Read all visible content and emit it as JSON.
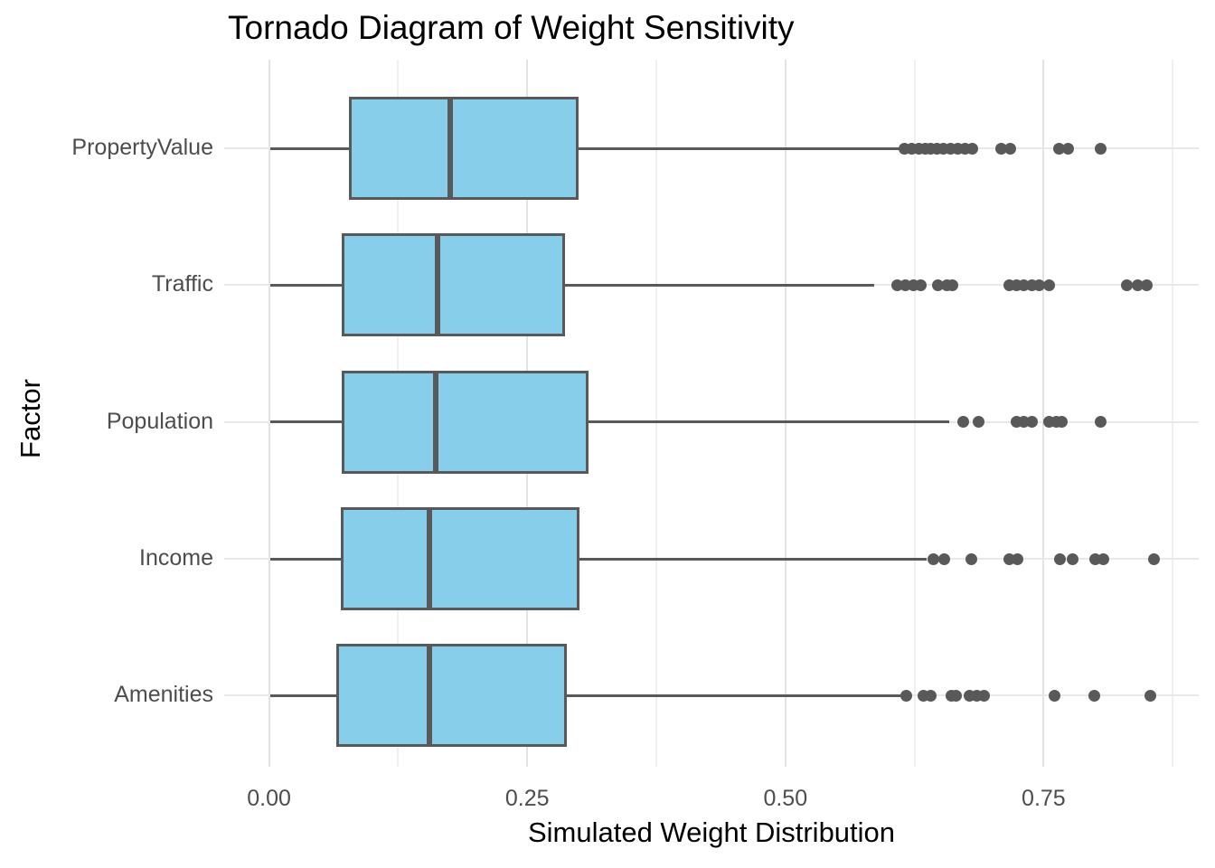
{
  "title": "Tornado Diagram of Weight Sensitivity",
  "chart_data": {
    "type": "boxplot",
    "orientation": "horizontal",
    "title": "Tornado Diagram of Weight Sensitivity",
    "xlabel": "Simulated Weight Distribution",
    "ylabel": "Factor",
    "xlim": [
      -0.043,
      0.9
    ],
    "x_ticks": [
      {
        "value": 0.0,
        "label": "0.00"
      },
      {
        "value": 0.25,
        "label": "0.25"
      },
      {
        "value": 0.5,
        "label": "0.50"
      },
      {
        "value": 0.75,
        "label": "0.75"
      }
    ],
    "x_minor_gridlines": [
      0.125,
      0.375,
      0.625,
      0.875
    ],
    "grid": true,
    "legend": false,
    "categories_top_to_bottom": [
      "PropertyValue",
      "Traffic",
      "Population",
      "Income",
      "Amenities"
    ],
    "series": [
      {
        "label": "PropertyValue",
        "whisker_low": 0.001,
        "q1": 0.079,
        "median": 0.175,
        "q3": 0.298,
        "whisker_high": 0.612,
        "outliers": [
          0.615,
          0.622,
          0.629,
          0.635,
          0.641,
          0.647,
          0.653,
          0.66,
          0.667,
          0.674,
          0.681,
          0.709,
          0.718,
          0.765,
          0.774,
          0.805
        ]
      },
      {
        "label": "Traffic",
        "whisker_low": 0.001,
        "q1": 0.072,
        "median": 0.163,
        "q3": 0.285,
        "whisker_high": 0.586,
        "outliers": [
          0.608,
          0.616,
          0.624,
          0.631,
          0.648,
          0.656,
          0.662,
          0.717,
          0.724,
          0.731,
          0.739,
          0.746,
          0.755,
          0.831,
          0.841,
          0.85
        ]
      },
      {
        "label": "Population",
        "whisker_low": 0.001,
        "q1": 0.072,
        "median": 0.161,
        "q3": 0.308,
        "whisker_high": 0.659,
        "outliers": [
          0.672,
          0.687,
          0.724,
          0.731,
          0.739,
          0.755,
          0.762,
          0.768,
          0.805
        ]
      },
      {
        "label": "Income",
        "whisker_low": 0.001,
        "q1": 0.071,
        "median": 0.155,
        "q3": 0.299,
        "whisker_high": 0.637,
        "outliers": [
          0.643,
          0.654,
          0.68,
          0.717,
          0.725,
          0.766,
          0.778,
          0.8,
          0.808,
          0.857
        ]
      },
      {
        "label": "Amenities",
        "whisker_low": 0.001,
        "q1": 0.067,
        "median": 0.155,
        "q3": 0.287,
        "whisker_high": 0.613,
        "outliers": [
          0.617,
          0.634,
          0.641,
          0.661,
          0.665,
          0.678,
          0.685,
          0.692,
          0.761,
          0.799,
          0.853
        ]
      }
    ],
    "colors": {
      "box_fill": "#87CEEB",
      "box_border": "#595959",
      "whisker": "#595959",
      "outlier": "#595959",
      "grid_major": "#e3e3e3",
      "grid_minor": "#f0f0f0",
      "grid_row": "#e8e8e8",
      "tick_text": "#4d4d4d",
      "title_text": "#000000"
    }
  }
}
